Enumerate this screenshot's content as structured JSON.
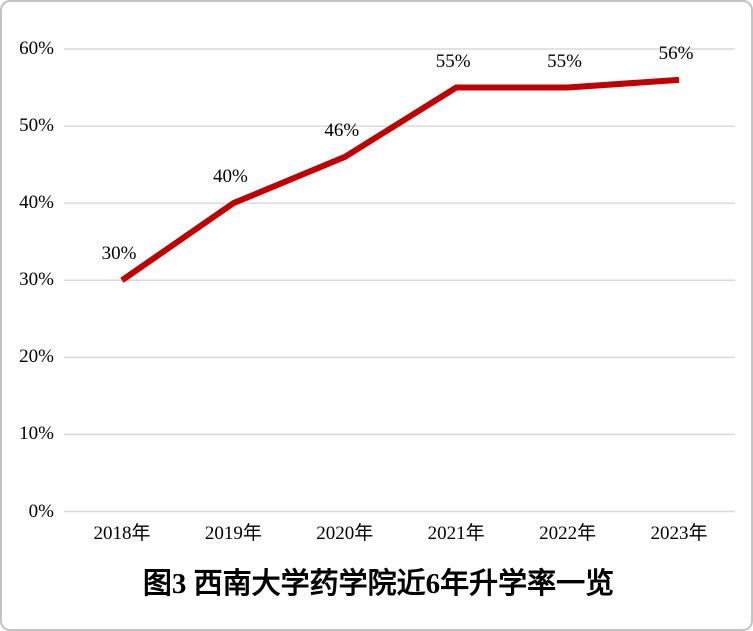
{
  "chart_data": {
    "type": "line",
    "title": "图3 西南大学药学院近6年升学率一览",
    "categories": [
      "2018年",
      "2019年",
      "2020年",
      "2021年",
      "2022年",
      "2023年"
    ],
    "values": [
      30,
      40,
      46,
      55,
      55,
      56
    ],
    "data_labels": [
      "30%",
      "40%",
      "46%",
      "55%",
      "55%",
      "56%"
    ],
    "yticks": [
      0,
      10,
      20,
      30,
      40,
      50,
      60
    ],
    "ytick_labels": [
      "0%",
      "10%",
      "20%",
      "30%",
      "40%",
      "50%",
      "60%"
    ],
    "ylim": [
      0,
      60
    ],
    "xlabel": "",
    "ylabel": "",
    "grid": true,
    "legend_position": "none",
    "line_color": "#c00000",
    "gridline_color": "#d9d9d9",
    "label_color": "#000000",
    "background_color": "#ffffff"
  }
}
